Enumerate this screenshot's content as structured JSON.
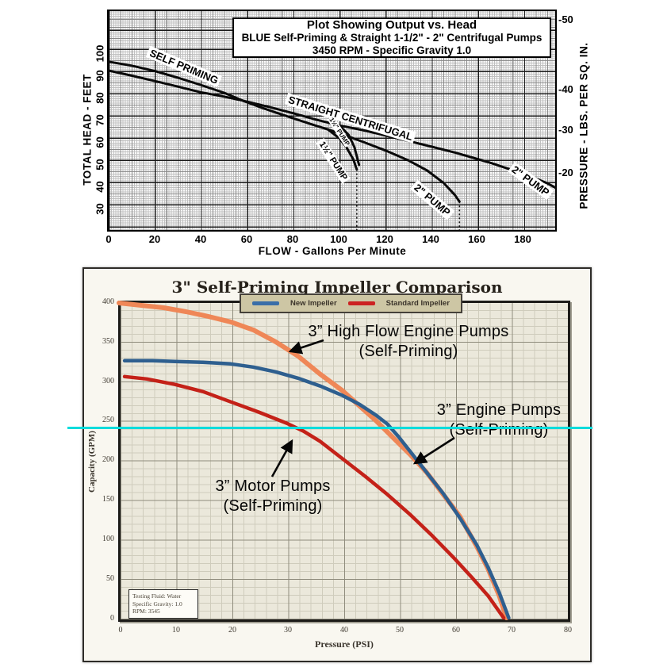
{
  "chart_data": [
    {
      "type": "line",
      "title": "Plot Showing Output vs. Head",
      "subtitle": "BLUE Self-Priming & Straight 1-1/2\" - 2\" Centrifugal Pumps",
      "subtitle2": "3450 RPM - Specific Gravity 1.0",
      "xlabel": "FLOW - Gallons Per Minute",
      "ylabel_left": "TOTAL HEAD - FEET",
      "ylabel_right": "PRESSURE - LBS. PER SQ. IN.",
      "xlim": [
        0,
        196
      ],
      "ylim_feet": [
        20,
        120
      ],
      "x_ticks": [
        0,
        20,
        40,
        60,
        80,
        100,
        120,
        140,
        160,
        180
      ],
      "y_ticks_feet": [
        100,
        90,
        80,
        70,
        60,
        50,
        40,
        30
      ],
      "y_ticks_psi": [
        -50,
        -40,
        -30,
        -20
      ],
      "grid": "fine engineering graph paper",
      "series": [
        {
          "id": "self-priming",
          "label": "SELF PRIMING",
          "units": "GPM,feet",
          "points": [
            [
              0,
              96.5
            ],
            [
              10,
              94.7
            ],
            [
              20,
              92.3
            ],
            [
              30,
              89.3
            ],
            [
              40,
              86
            ],
            [
              50,
              82.5
            ],
            [
              58,
              79
            ],
            [
              65,
              76.3
            ],
            [
              72,
              73.8
            ],
            [
              80,
              71
            ],
            [
              88,
              68.3
            ],
            [
              95,
              66
            ]
          ]
        },
        {
          "id": "sp-pump-15",
          "label": "1½\" PUMP",
          "units": "GPM,feet",
          "points": [
            [
              95,
              66
            ],
            [
              100,
              62
            ],
            [
              103,
              58
            ],
            [
              106,
              52.5
            ],
            [
              107.5,
              48
            ]
          ]
        },
        {
          "id": "sp-pump-2",
          "label": "2\" PUMP",
          "units": "GPM,feet",
          "points": [
            [
              95,
              66
            ],
            [
              102,
              63.5
            ],
            [
              110,
              60.5
            ],
            [
              120,
              56.5
            ],
            [
              130,
              52
            ],
            [
              138,
              47.5
            ],
            [
              145,
              42
            ],
            [
              150,
              36.5
            ],
            [
              152,
              33.5
            ]
          ]
        },
        {
          "id": "straight-centrifugal",
          "label": "STRAIGHT CENTRIFUGAL",
          "units": "GPM,feet",
          "points": [
            [
              0,
              92.5
            ],
            [
              10,
              90.2
            ],
            [
              20,
              87.8
            ],
            [
              30,
              85.3
            ],
            [
              40,
              82.7
            ],
            [
              50,
              80.8
            ],
            [
              58,
              79
            ],
            [
              70,
              76
            ],
            [
              80,
              73.3
            ],
            [
              90,
              70.4
            ],
            [
              100,
              67.8
            ]
          ]
        },
        {
          "id": "sc-pump-15",
          "label": "1½\" PUMP",
          "units": "GPM,feet",
          "points": [
            [
              100,
              67.8
            ],
            [
              104,
              63.5
            ],
            [
              106.5,
              58
            ],
            [
              108.5,
              50
            ]
          ]
        },
        {
          "id": "sc-pump-2",
          "label": "2\" PUMP",
          "units": "GPM,feet",
          "points": [
            [
              100,
              67.8
            ],
            [
              110,
              65.7
            ],
            [
              120,
              63.3
            ],
            [
              130,
              60.8
            ],
            [
              140,
              58.2
            ],
            [
              150,
              55.6
            ],
            [
              158,
              53.2
            ],
            [
              166,
              50.8
            ],
            [
              174,
              48
            ],
            [
              182,
              45.2
            ],
            [
              190,
              41.8
            ],
            [
              193.5,
              39.8
            ]
          ]
        }
      ],
      "guide_lines": [
        {
          "x_gpm": 107.5,
          "from_feet": 48,
          "to_feet": 20.6
        },
        {
          "x_gpm": 152,
          "from_feet": 33.5,
          "to_feet": 20.6
        }
      ]
    },
    {
      "type": "line",
      "title": "3\" Self-Priming Impeller Comparison",
      "xlabel": "Pressure (PSI)",
      "ylabel": "Capacity (GPM)",
      "xlim": [
        0,
        80
      ],
      "ylim": [
        0,
        400
      ],
      "x_ticks": [
        0,
        10,
        20,
        30,
        40,
        50,
        60,
        70,
        80
      ],
      "y_ticks": [
        400,
        350,
        300,
        250,
        200,
        150,
        100,
        50,
        0
      ],
      "legend": [
        {
          "label": "New Impeller",
          "color": "#2e5f8f"
        },
        {
          "label": "Standard Impeller",
          "color": "#c42118"
        }
      ],
      "series": [
        {
          "id": "high-flow-engine",
          "color": "#ef8757",
          "width": 6,
          "units": "PSI,GPM",
          "points": [
            [
              0,
              398
            ],
            [
              4,
              395
            ],
            [
              8,
              392
            ],
            [
              12,
              387
            ],
            [
              16,
              381
            ],
            [
              20,
              374
            ],
            [
              24,
              364
            ],
            [
              28,
              349
            ],
            [
              32,
              331
            ],
            [
              36,
              308
            ],
            [
              40,
              287
            ],
            [
              43,
              268
            ],
            [
              46,
              249
            ],
            [
              49,
              228
            ],
            [
              52,
              207
            ],
            [
              55,
              184
            ],
            [
              58,
              156
            ],
            [
              61,
              128
            ],
            [
              64,
              90
            ],
            [
              66,
              62
            ],
            [
              68,
              28
            ],
            [
              69.3,
              0
            ]
          ]
        },
        {
          "id": "standard-impeller",
          "color": "#c42118",
          "width": 4.5,
          "units": "PSI,GPM",
          "points": [
            [
              1,
              305
            ],
            [
              5,
              302
            ],
            [
              10,
              295
            ],
            [
              15,
              286
            ],
            [
              20,
              273
            ],
            [
              25,
              260
            ],
            [
              30,
              246
            ],
            [
              33,
              236
            ],
            [
              36,
              223
            ],
            [
              40,
              201
            ],
            [
              44,
              179
            ],
            [
              48,
              156
            ],
            [
              52,
              131
            ],
            [
              56,
              104
            ],
            [
              60,
              75
            ],
            [
              63,
              52
            ],
            [
              66,
              28
            ],
            [
              68.8,
              0
            ]
          ]
        },
        {
          "id": "new-impeller",
          "color": "#2e5f8f",
          "width": 4.5,
          "units": "PSI,GPM",
          "points": [
            [
              1,
              325
            ],
            [
              6,
              325
            ],
            [
              10,
              324
            ],
            [
              15,
              323
            ],
            [
              20,
              321
            ],
            [
              24,
              317
            ],
            [
              28,
              311
            ],
            [
              32,
              303
            ],
            [
              36,
              293
            ],
            [
              40,
              281
            ],
            [
              43,
              270
            ],
            [
              46,
              256
            ],
            [
              48,
              245
            ],
            [
              50,
              229
            ],
            [
              52,
              211
            ],
            [
              55,
              184
            ],
            [
              58,
              157
            ],
            [
              61,
              126
            ],
            [
              64,
              92
            ],
            [
              66,
              64
            ],
            [
              68,
              32
            ],
            [
              69.7,
              0
            ]
          ]
        }
      ],
      "reference_line": {
        "capacity_gpm": 240,
        "color": "#00dcdc"
      },
      "annotations": [
        {
          "id": "high-flow",
          "line1": "3” High Flow Engine Pumps",
          "line2": "(Self-Priming)"
        },
        {
          "id": "engine",
          "line1": "3” Engine Pumps",
          "line2": "(Self-Priming)"
        },
        {
          "id": "motor",
          "line1": "3” Motor Pumps",
          "line2": "(Self-Priming)"
        }
      ],
      "info_box": [
        "Testing Fluid: Water",
        "Specific Gravity: 1.0",
        "RPM: 3545"
      ]
    }
  ]
}
